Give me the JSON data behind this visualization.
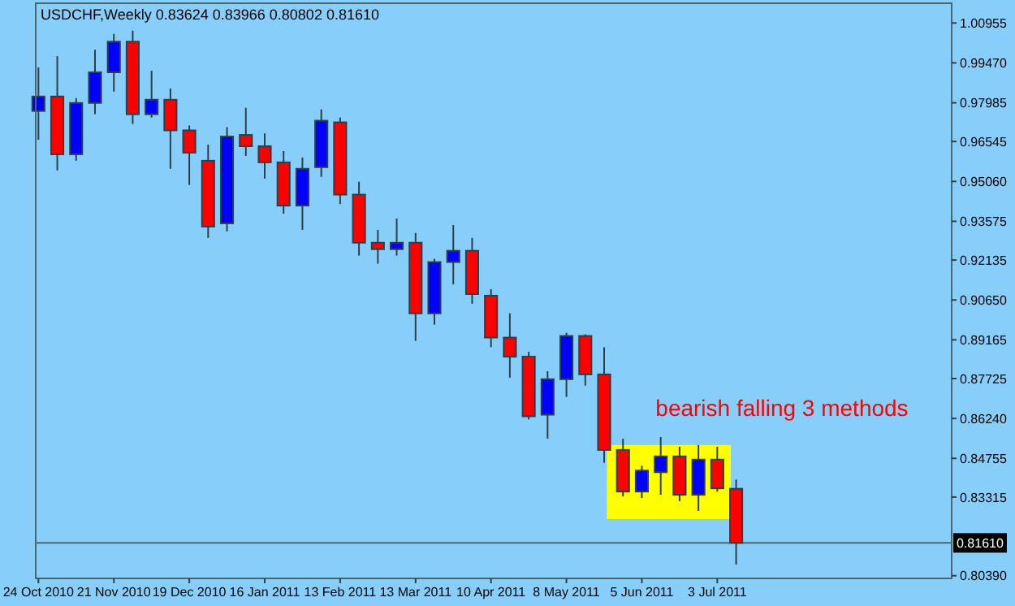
{
  "chart_data": {
    "type": "candlestick",
    "title": "USDCHF,Weekly  0.83624 0.83966 0.80802 0.81610",
    "x": [
      "2010-10-24",
      "2010-10-31",
      "2010-11-07",
      "2010-11-14",
      "2010-11-21",
      "2010-11-28",
      "2010-12-05",
      "2010-12-12",
      "2010-12-19",
      "2010-12-26",
      "2011-01-02",
      "2011-01-09",
      "2011-01-16",
      "2011-01-23",
      "2011-01-30",
      "2011-02-06",
      "2011-02-13",
      "2011-02-20",
      "2011-02-27",
      "2011-03-06",
      "2011-03-13",
      "2011-03-20",
      "2011-03-27",
      "2011-04-03",
      "2011-04-10",
      "2011-04-17",
      "2011-04-24",
      "2011-05-01",
      "2011-05-08",
      "2011-05-15",
      "2011-05-22",
      "2011-05-29",
      "2011-06-05",
      "2011-06-12",
      "2011-06-19",
      "2011-06-26",
      "2011-07-03",
      "2011-07-10"
    ],
    "ohlc": [
      [
        0.9768,
        0.993,
        0.9661,
        0.9822
      ],
      [
        0.9822,
        0.9972,
        0.9547,
        0.9607
      ],
      [
        0.9607,
        0.9816,
        0.9583,
        0.9798
      ],
      [
        0.9798,
        0.9996,
        0.9756,
        0.9912
      ],
      [
        0.9912,
        1.0055,
        0.984,
        1.0026
      ],
      [
        1.0026,
        1.0067,
        0.972,
        0.9756
      ],
      [
        0.9756,
        0.9918,
        0.9744,
        0.981
      ],
      [
        0.981,
        0.9852,
        0.9553,
        0.9696
      ],
      [
        0.9696,
        0.9714,
        0.9493,
        0.9613
      ],
      [
        0.9583,
        0.9643,
        0.9296,
        0.9338
      ],
      [
        0.935,
        0.9708,
        0.932,
        0.9673
      ],
      [
        0.9679,
        0.978,
        0.9601,
        0.9637
      ],
      [
        0.9637,
        0.9685,
        0.9517,
        0.9577
      ],
      [
        0.9577,
        0.9619,
        0.9386,
        0.9416
      ],
      [
        0.9416,
        0.9595,
        0.9326,
        0.9553
      ],
      [
        0.9559,
        0.9774,
        0.9523,
        0.9732
      ],
      [
        0.9726,
        0.9744,
        0.9422,
        0.9457
      ],
      [
        0.9457,
        0.9505,
        0.923,
        0.9278
      ],
      [
        0.9278,
        0.9326,
        0.92,
        0.9254
      ],
      [
        0.9254,
        0.9368,
        0.923,
        0.9278
      ],
      [
        0.9278,
        0.9314,
        0.8913,
        0.9015
      ],
      [
        0.9015,
        0.9218,
        0.8973,
        0.9206
      ],
      [
        0.9206,
        0.9344,
        0.9123,
        0.9248
      ],
      [
        0.9248,
        0.9296,
        0.9051,
        0.9087
      ],
      [
        0.9081,
        0.9105,
        0.8889,
        0.8925
      ],
      [
        0.8925,
        0.9015,
        0.8776,
        0.8854
      ],
      [
        0.8854,
        0.8872,
        0.862,
        0.8632
      ],
      [
        0.8638,
        0.88,
        0.8549,
        0.877
      ],
      [
        0.877,
        0.8943,
        0.8704,
        0.8931
      ],
      [
        0.8931,
        0.8937,
        0.8746,
        0.8788
      ],
      [
        0.8788,
        0.8889,
        0.8459,
        0.8507
      ],
      [
        0.8507,
        0.8549,
        0.8334,
        0.8352
      ],
      [
        0.8352,
        0.8448,
        0.8328,
        0.843
      ],
      [
        0.8424,
        0.8555,
        0.834,
        0.8483
      ],
      [
        0.8483,
        0.8519,
        0.8316,
        0.834
      ],
      [
        0.834,
        0.8525,
        0.828,
        0.8471
      ],
      [
        0.8471,
        0.8519,
        0.8352,
        0.8364
      ],
      [
        0.83624,
        0.83966,
        0.80802,
        0.8161
      ]
    ],
    "colors": [
      "#0000ff",
      "#ff0000",
      "#0000ff",
      "#0000ff",
      "#0000ff",
      "#ff0000",
      "#0000ff",
      "#ff0000",
      "#ff0000",
      "#ff0000",
      "#0000ff",
      "#ff0000",
      "#ff0000",
      "#ff0000",
      "#0000ff",
      "#0000ff",
      "#ff0000",
      "#ff0000",
      "#ff0000",
      "#0000ff",
      "#ff0000",
      "#0000ff",
      "#0000ff",
      "#ff0000",
      "#ff0000",
      "#ff0000",
      "#ff0000",
      "#0000ff",
      "#0000ff",
      "#ff0000",
      "#ff0000",
      "#ff0000",
      "#0000ff",
      "#0000ff",
      "#ff0000",
      "#0000ff",
      "#ff0000",
      "#ff0000"
    ],
    "xlim": [
      "2010-10-23",
      "2011-09-28"
    ],
    "xticks": [
      {
        "value": "2010-10-24",
        "label": "24 Oct 2010"
      },
      {
        "value": "2010-11-21",
        "label": "21 Nov 2010"
      },
      {
        "value": "2010-12-19",
        "label": "19 Dec 2010"
      },
      {
        "value": "2011-01-16",
        "label": "16 Jan 2011"
      },
      {
        "value": "2011-02-13",
        "label": "13 Feb 2011"
      },
      {
        "value": "2011-03-13",
        "label": "13 Mar 2011"
      },
      {
        "value": "2011-04-10",
        "label": "10 Apr 2011"
      },
      {
        "value": "2011-05-08",
        "label": "8 May 2011"
      },
      {
        "value": "2011-06-05",
        "label": "5 Jun 2011"
      },
      {
        "value": "2011-07-03",
        "label": "3 Jul 2011"
      }
    ],
    "ylim": [
      0.8029,
      1.0169
    ],
    "yticks": [
      {
        "value": 1.00955,
        "label": "1.00955"
      },
      {
        "value": 0.9947,
        "label": "0.99470"
      },
      {
        "value": 0.97985,
        "label": "0.97985"
      },
      {
        "value": 0.96545,
        "label": "0.96545"
      },
      {
        "value": 0.9506,
        "label": "0.95060"
      },
      {
        "value": 0.93575,
        "label": "0.93575"
      },
      {
        "value": 0.92135,
        "label": "0.92135"
      },
      {
        "value": 0.9065,
        "label": "0.90650"
      },
      {
        "value": 0.89165,
        "label": "0.89165"
      },
      {
        "value": 0.87725,
        "label": "0.87725"
      },
      {
        "value": 0.8624,
        "label": "0.86240"
      },
      {
        "value": 0.84755,
        "label": "0.84755"
      },
      {
        "value": 0.83315,
        "label": "0.83315"
      },
      {
        "value": 0.8039,
        "label": "0.80390"
      }
    ],
    "ref_lines": [
      {
        "axis": "y",
        "value": 0.8161,
        "label": "0.81610",
        "color": "#4a6670"
      }
    ],
    "bands": [
      {
        "axis": "x",
        "from": "2011-05-23",
        "to": "2011-07-08",
        "color": "#ffff00"
      }
    ],
    "annotations": [
      "bearish falling 3 methods"
    ]
  }
}
